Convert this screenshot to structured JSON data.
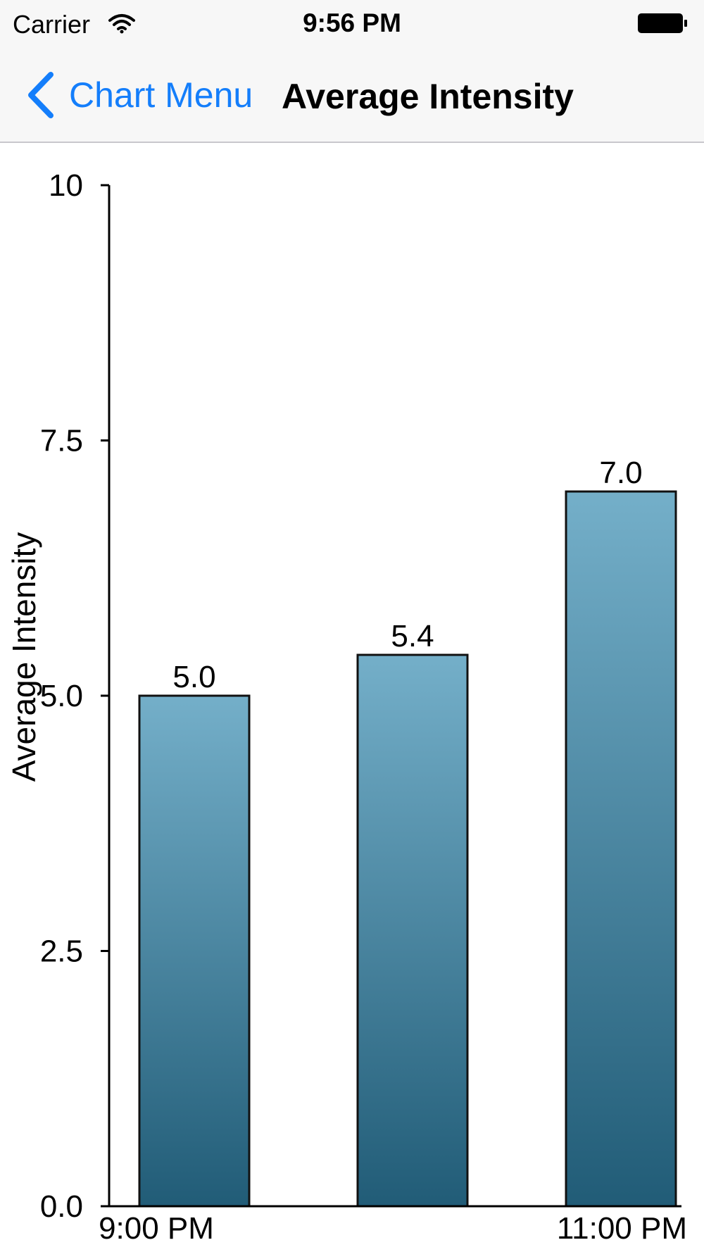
{
  "status_bar": {
    "carrier": "Carrier",
    "time": "9:56 PM",
    "icons": [
      "wifi-icon",
      "battery-icon"
    ]
  },
  "nav": {
    "back_label": "Chart Menu",
    "title": "Average Intensity",
    "accent_color": "#147efb"
  },
  "chart_data": {
    "type": "bar",
    "categories": [
      "9:00 PM",
      "",
      "11:00 PM"
    ],
    "values": [
      5.0,
      5.4,
      7.0
    ],
    "value_labels": [
      "5.0",
      "5.4",
      "7.0"
    ],
    "ylabel": "Average Intensity",
    "xlabel": "",
    "ylim": [
      0,
      10
    ],
    "yticks": [
      0,
      2.5,
      5,
      7.5,
      10
    ],
    "ytick_labels": [
      "0.0",
      "2.5",
      "5.0",
      "7.5",
      "10"
    ],
    "grid": false,
    "bar_color_top": "#74afc9",
    "bar_color_bottom": "#215c77"
  }
}
